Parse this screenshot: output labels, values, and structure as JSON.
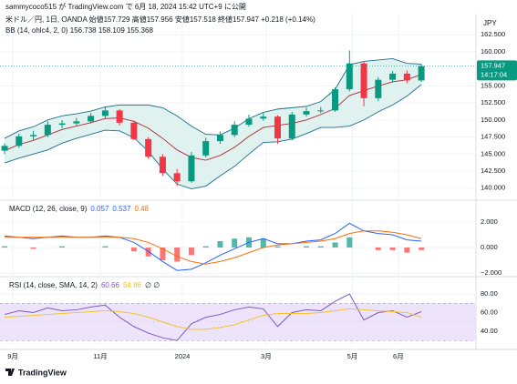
{
  "header": "sammycoco515 が TradingView.com で 6月 18, 2024 15:42 UTC+9 に公開",
  "currency": "JPY",
  "footer": "TradingView",
  "chart_data": [
    {
      "type": "candlestick",
      "title": "米ドル／円, 1日, OANDA  始値157.729 高値157.956 安値157.518 終値157.947 +0.218 (+0.14%)",
      "subtitle": "BB (14, ohlc4, 2, 0)  156.738  158.109  155.368",
      "last_price": 157.947,
      "countdown": "14:17:04",
      "xlim": [
        -0.32,
        32.8
      ],
      "xticks": [
        {
          "value": 0.57,
          "label": "9月"
        },
        {
          "value": 6.66,
          "label": "11月"
        },
        {
          "value": 12.37,
          "label": "2024"
        },
        {
          "value": 18.2,
          "label": "3月"
        },
        {
          "value": 24.2,
          "label": "5月"
        },
        {
          "value": 27.4,
          "label": "6月"
        }
      ],
      "ylim": [
        138.5,
        165.6
      ],
      "yticks": [
        {
          "value": 140,
          "label": "140.000"
        },
        {
          "value": 142.5,
          "label": "142.500"
        },
        {
          "value": 145,
          "label": "145.000"
        },
        {
          "value": 147.5,
          "label": "147.500"
        },
        {
          "value": 150,
          "label": "150.000"
        },
        {
          "value": 152.5,
          "label": "152.500"
        },
        {
          "value": 155,
          "label": "155.000"
        },
        {
          "value": 160,
          "label": "160.000"
        },
        {
          "value": 162.5,
          "label": "162.500"
        }
      ],
      "grid": true,
      "up_color": "#089981",
      "down_color": "#f23645",
      "open": [
        145.5,
        146.2,
        147.6,
        147.8,
        149.3,
        149.5,
        149.8,
        150.6,
        151.4,
        149.6,
        147.2,
        144.6,
        142.2,
        141.0,
        144.8,
        146.9,
        147.8,
        149.3,
        150.2,
        150.5,
        147.3,
        150.8,
        151.3,
        151.4,
        154.5,
        158.3,
        153.2,
        155.9,
        156.8,
        155.8
      ],
      "high": [
        146.6,
        148.0,
        148.4,
        149.8,
        150.0,
        150.3,
        151.0,
        151.9,
        151.6,
        149.9,
        147.5,
        145.0,
        142.8,
        145.3,
        147.4,
        148.3,
        149.8,
        150.8,
        151.0,
        150.7,
        151.2,
        151.8,
        151.9,
        154.8,
        160.2,
        158.5,
        156.3,
        157.2,
        157.3,
        158.2
      ],
      "low": [
        145.0,
        145.9,
        147.1,
        147.5,
        148.8,
        149.2,
        149.5,
        150.2,
        149.2,
        147.0,
        144.3,
        141.8,
        140.3,
        140.8,
        144.5,
        146.5,
        147.5,
        149.0,
        149.9,
        146.5,
        147.0,
        150.5,
        151.0,
        151.2,
        154.2,
        152.0,
        152.8,
        155.5,
        155.4,
        155.6
      ],
      "close": [
        146.2,
        147.6,
        147.8,
        149.3,
        149.5,
        149.8,
        150.6,
        151.4,
        149.6,
        147.2,
        144.6,
        142.2,
        141.0,
        144.8,
        146.9,
        147.8,
        149.3,
        150.2,
        150.5,
        147.3,
        150.8,
        151.3,
        151.4,
        154.5,
        158.3,
        153.2,
        155.9,
        156.8,
        155.8,
        157.9
      ],
      "series": [
        {
          "color": "#1c6e8c",
          "values": [
            147.3,
            148.4,
            149.0,
            150.0,
            150.6,
            150.9,
            151.3,
            151.9,
            152.2,
            152.2,
            152.2,
            151.8,
            150.6,
            149.1,
            147.9,
            147.8,
            148.8,
            150.2,
            151.1,
            151.6,
            151.8,
            152.0,
            152.7,
            154.5,
            158.1,
            158.6,
            158.8,
            159.0,
            158.3,
            158.2
          ]
        },
        {
          "color": "#b22833",
          "values": [
            145.5,
            146.4,
            147.0,
            147.8,
            148.6,
            149.1,
            149.6,
            150.2,
            150.3,
            149.8,
            148.8,
            147.3,
            145.6,
            144.5,
            144.1,
            144.8,
            146.0,
            147.6,
            148.9,
            149.2,
            149.5,
            150.0,
            150.8,
            151.7,
            153.6,
            154.3,
            155.0,
            155.6,
            155.9,
            156.7
          ]
        },
        {
          "color": "#1c6e8c",
          "values": [
            143.7,
            144.4,
            145.0,
            145.6,
            146.6,
            147.3,
            147.9,
            148.5,
            148.4,
            147.4,
            145.4,
            142.8,
            140.6,
            139.9,
            140.3,
            141.8,
            143.2,
            145.0,
            146.7,
            146.8,
            147.2,
            148.0,
            148.9,
            148.9,
            149.1,
            150.0,
            151.2,
            152.2,
            153.5,
            155.2
          ]
        }
      ],
      "band_fill": "#dff2ef"
    },
    {
      "type": "macd",
      "title": "MACD (12, 26, close, 9)",
      "legend_values": [
        0.057,
        0.537,
        0.48
      ],
      "ylim": [
        -2.14,
        3.57
      ],
      "yticks": [
        {
          "value": 2,
          "label": "2.000"
        },
        {
          "value": 0,
          "label": "0.000"
        },
        {
          "value": -2,
          "label": "−2.000"
        }
      ],
      "grid": true,
      "histogram": {
        "up_color": "#26a69a",
        "down_color": "#ff5252",
        "values": [
          0.1,
          0,
          -0.1,
          0,
          0.1,
          0,
          0,
          0.1,
          0,
          -0.3,
          -0.7,
          -1.0,
          -1.1,
          -0.6,
          0.1,
          0.5,
          0.7,
          0.8,
          0.7,
          0.1,
          0,
          0.1,
          0.1,
          0.4,
          0.8,
          0,
          -0.2,
          -0.2,
          -0.4,
          -0.2
        ]
      },
      "series": [
        {
          "color": "#2962ff",
          "values": [
            0.9,
            0.8,
            0.7,
            0.8,
            0.9,
            0.8,
            0.8,
            0.9,
            0.8,
            0.4,
            -0.3,
            -1.1,
            -1.8,
            -1.7,
            -1.2,
            -0.6,
            -0.1,
            0.4,
            0.7,
            0.3,
            0.3,
            0.5,
            0.6,
            1.1,
            1.9,
            1.3,
            1.1,
            1.0,
            0.6,
            0.5
          ]
        },
        {
          "color": "#ff6d00",
          "values": [
            0.8,
            0.8,
            0.8,
            0.8,
            0.8,
            0.8,
            0.8,
            0.8,
            0.8,
            0.7,
            0.4,
            -0.1,
            -0.7,
            -1.1,
            -1.3,
            -1.1,
            -0.8,
            -0.4,
            0.0,
            0.2,
            0.3,
            0.4,
            0.5,
            0.7,
            1.1,
            1.3,
            1.3,
            1.2,
            1.0,
            0.7
          ]
        }
      ]
    },
    {
      "type": "rsi",
      "title": "RSI (14, close, SMA, 14, 2)",
      "legend_values": [
        60.66,
        54.86
      ],
      "legend_extra": "∅ ∅",
      "ylim": [
        24.4,
        96.6
      ],
      "yticks": [
        {
          "value": 40,
          "label": "40.00"
        },
        {
          "value": 60,
          "label": "60.00"
        },
        {
          "value": 80,
          "label": "80.00"
        }
      ],
      "band": [
        30,
        70
      ],
      "band_fill": "#ede4fb",
      "midline": 50,
      "grid": true,
      "series": [
        {
          "color": "#7e57c2",
          "values": [
            58,
            62,
            60,
            65,
            62,
            63,
            66,
            68,
            55,
            45,
            38,
            33,
            30,
            48,
            55,
            58,
            63,
            66,
            64,
            45,
            60,
            63,
            62,
            72,
            80,
            52,
            60,
            62,
            55,
            61
          ]
        },
        {
          "color": "#f2c230",
          "values": [
            55,
            56,
            57,
            58,
            59,
            60,
            61,
            62,
            61,
            59,
            55,
            50,
            45,
            42,
            42,
            44,
            47,
            52,
            57,
            59,
            59,
            59,
            60,
            62,
            64,
            63,
            62,
            61,
            60,
            55
          ]
        }
      ]
    }
  ]
}
